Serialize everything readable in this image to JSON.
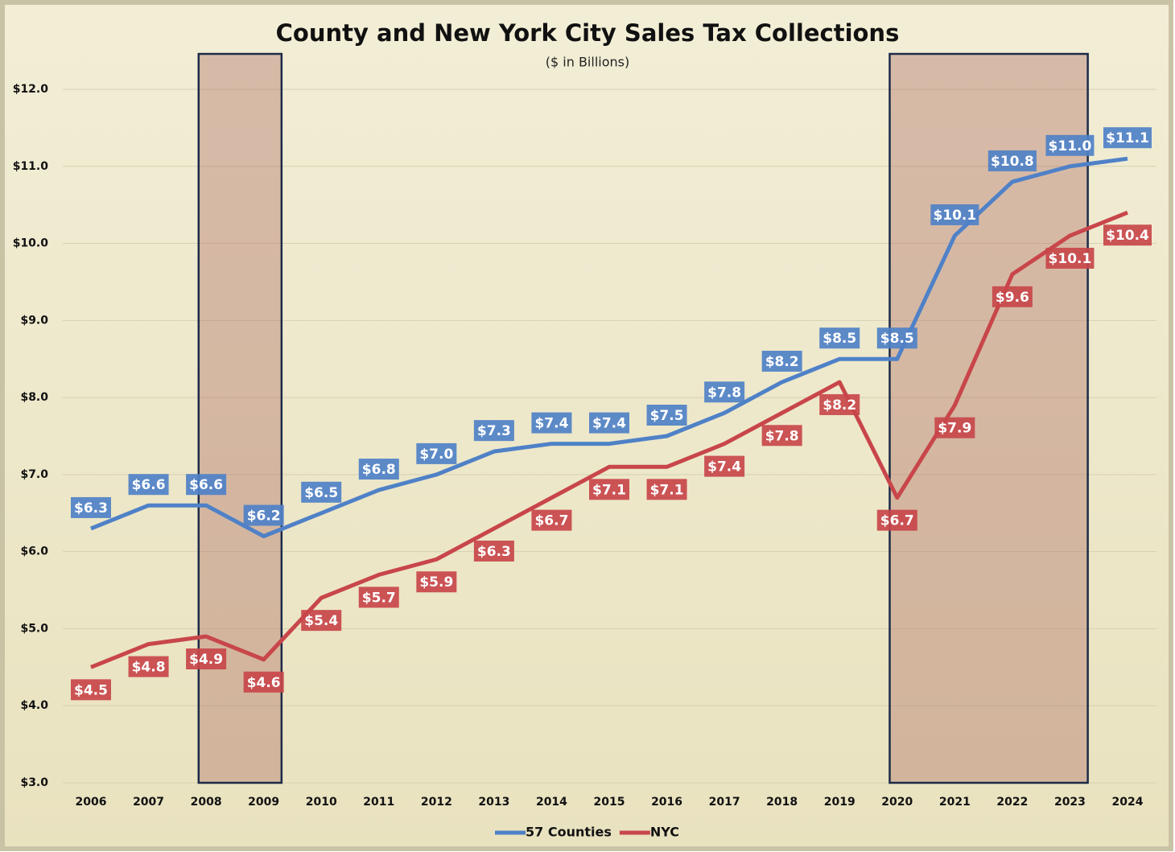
{
  "chart_data": {
    "type": "line",
    "title": "County and New York City Sales Tax Collections",
    "subtitle": "($ in Billions)",
    "categories": [
      "2006",
      "2007",
      "2008",
      "2009",
      "2010",
      "2011",
      "2012",
      "2013",
      "2014",
      "2015",
      "2016",
      "2017",
      "2018",
      "2019",
      "2020",
      "2021",
      "2022",
      "2023",
      "2024"
    ],
    "series": [
      {
        "name": "57 Counties",
        "color": "#4f81c7",
        "values": [
          6.3,
          6.6,
          6.6,
          6.2,
          6.5,
          6.8,
          7.0,
          7.3,
          7.4,
          7.4,
          7.5,
          7.8,
          8.2,
          8.5,
          8.5,
          10.1,
          10.8,
          11.0,
          11.1
        ],
        "value_labels": [
          "$6.3",
          "$6.6",
          "$6.6",
          "$6.2",
          "$6.5",
          "$6.8",
          "$7.0",
          "$7.3",
          "$7.4",
          "$7.4",
          "$7.5",
          "$7.8",
          "$8.2",
          "$8.5",
          "$8.5",
          "$10.1",
          "$10.8",
          "$11.0",
          "$11.1"
        ]
      },
      {
        "name": "NYC",
        "color": "#c8464a",
        "values": [
          4.5,
          4.8,
          4.9,
          4.6,
          5.4,
          5.7,
          5.9,
          6.3,
          6.7,
          7.1,
          7.1,
          7.4,
          7.8,
          8.2,
          6.7,
          7.9,
          9.6,
          10.1,
          10.4
        ],
        "value_labels": [
          "$4.5",
          "$4.8",
          "$4.9",
          "$4.6",
          "$5.4",
          "$5.7",
          "$5.9",
          "$6.3",
          "$6.7",
          "$7.1",
          "$7.1",
          "$7.4",
          "$7.8",
          "$8.2",
          "$6.7",
          "$7.9",
          "$9.6",
          "$10.1",
          "$10.4"
        ]
      }
    ],
    "ylim": [
      3,
      12.5
    ],
    "yticks": [
      {
        "value": 3,
        "label": "$3.0"
      },
      {
        "value": 4,
        "label": "$4.0"
      },
      {
        "value": 5,
        "label": "$5.0"
      },
      {
        "value": 6,
        "label": "$6.0"
      },
      {
        "value": 7,
        "label": "$7.0"
      },
      {
        "value": 8,
        "label": "$8.0"
      },
      {
        "value": 9,
        "label": "$9.0"
      },
      {
        "value": 10,
        "label": "$10.0"
      },
      {
        "value": 11,
        "label": "$11.0"
      },
      {
        "value": 12,
        "label": "$12.0"
      }
    ],
    "grid": true,
    "legend": "bottom",
    "shaded_ranges": [
      [
        "2008",
        "2009"
      ],
      [
        "2020",
        "2023"
      ]
    ]
  }
}
